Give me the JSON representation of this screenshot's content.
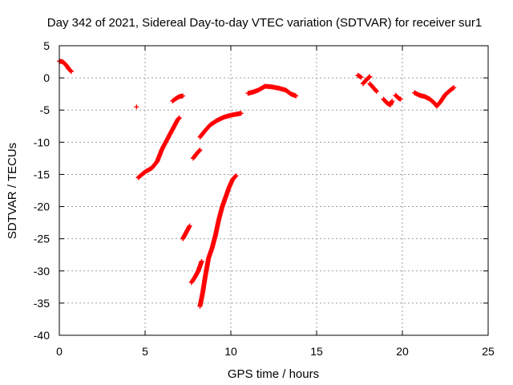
{
  "chart_data": {
    "type": "scatter",
    "title": "Day 342 of 2021, Sidereal Day-to-day VTEC variation (SDTVAR) for receiver sur1",
    "xlabel": "GPS time / hours",
    "ylabel": "SDTVAR / TECUs",
    "xlim": [
      0,
      25
    ],
    "ylim": [
      -40,
      5
    ],
    "xticks": [
      0,
      5,
      10,
      15,
      20,
      25
    ],
    "yticks": [
      5,
      0,
      -5,
      -10,
      -15,
      -20,
      -25,
      -30,
      -35,
      -40
    ],
    "grid": true,
    "legend": "none",
    "marker": "plus",
    "color": "#ff0000",
    "segments": [
      [
        [
          0.0,
          2.6
        ],
        [
          0.2,
          2.5
        ],
        [
          0.4,
          2.0
        ],
        [
          0.55,
          1.4
        ],
        [
          0.7,
          1.0
        ]
      ],
      [
        [
          4.5,
          -4.5
        ]
      ],
      [
        [
          4.6,
          -15.5
        ],
        [
          5.0,
          -14.6
        ],
        [
          5.4,
          -14.0
        ],
        [
          5.7,
          -13.0
        ],
        [
          6.0,
          -11.0
        ],
        [
          6.3,
          -9.5
        ],
        [
          6.6,
          -8.0
        ],
        [
          6.9,
          -6.5
        ],
        [
          7.0,
          -6.2
        ]
      ],
      [
        [
          6.6,
          -3.6
        ],
        [
          6.8,
          -3.2
        ],
        [
          7.0,
          -2.9
        ],
        [
          7.2,
          -2.8
        ]
      ],
      [
        [
          7.2,
          -25.0
        ],
        [
          7.4,
          -24.0
        ],
        [
          7.6,
          -23.0
        ]
      ],
      [
        [
          7.7,
          -31.8
        ],
        [
          7.9,
          -31.0
        ],
        [
          8.1,
          -30.0
        ],
        [
          8.3,
          -28.5
        ]
      ],
      [
        [
          7.8,
          -12.5
        ],
        [
          8.0,
          -11.8
        ],
        [
          8.2,
          -11.2
        ]
      ],
      [
        [
          8.2,
          -35.5
        ],
        [
          8.35,
          -33.5
        ],
        [
          8.5,
          -31.0
        ],
        [
          8.7,
          -28.0
        ],
        [
          8.9,
          -26.5
        ],
        [
          9.1,
          -24.5
        ],
        [
          9.3,
          -22.0
        ],
        [
          9.5,
          -20.0
        ],
        [
          9.7,
          -18.5
        ],
        [
          9.9,
          -17.0
        ],
        [
          10.1,
          -15.8
        ],
        [
          10.3,
          -15.2
        ]
      ],
      [
        [
          8.2,
          -9.2
        ],
        [
          8.5,
          -8.2
        ],
        [
          8.8,
          -7.3
        ],
        [
          9.2,
          -6.6
        ],
        [
          9.6,
          -6.1
        ],
        [
          10.0,
          -5.8
        ],
        [
          10.4,
          -5.6
        ],
        [
          10.6,
          -5.5
        ]
      ],
      [
        [
          11.0,
          -2.4
        ],
        [
          11.3,
          -2.2
        ],
        [
          11.6,
          -1.9
        ],
        [
          12.0,
          -1.3
        ],
        [
          12.4,
          -1.4
        ],
        [
          12.8,
          -1.6
        ],
        [
          13.2,
          -1.9
        ],
        [
          13.5,
          -2.5
        ],
        [
          13.8,
          -2.8
        ]
      ],
      [
        [
          17.4,
          0.4
        ],
        [
          17.6,
          0.1
        ]
      ],
      [
        [
          17.7,
          -0.9
        ],
        [
          17.9,
          -0.3
        ],
        [
          18.1,
          0.2
        ]
      ],
      [
        [
          18.1,
          -0.9
        ],
        [
          18.3,
          -1.5
        ],
        [
          18.5,
          -2.1
        ]
      ],
      [
        [
          18.9,
          -3.3
        ],
        [
          19.1,
          -3.9
        ],
        [
          19.3,
          -4.2
        ],
        [
          19.4,
          -3.6
        ]
      ],
      [
        [
          19.6,
          -2.7
        ],
        [
          19.8,
          -3.2
        ],
        [
          19.9,
          -3.3
        ]
      ],
      [
        [
          20.7,
          -2.3
        ],
        [
          21.0,
          -2.7
        ],
        [
          21.3,
          -2.9
        ],
        [
          21.6,
          -3.3
        ],
        [
          21.9,
          -4.0
        ],
        [
          22.0,
          -4.4
        ],
        [
          22.2,
          -3.8
        ],
        [
          22.5,
          -2.6
        ],
        [
          22.8,
          -1.9
        ],
        [
          23.0,
          -1.5
        ]
      ]
    ]
  }
}
